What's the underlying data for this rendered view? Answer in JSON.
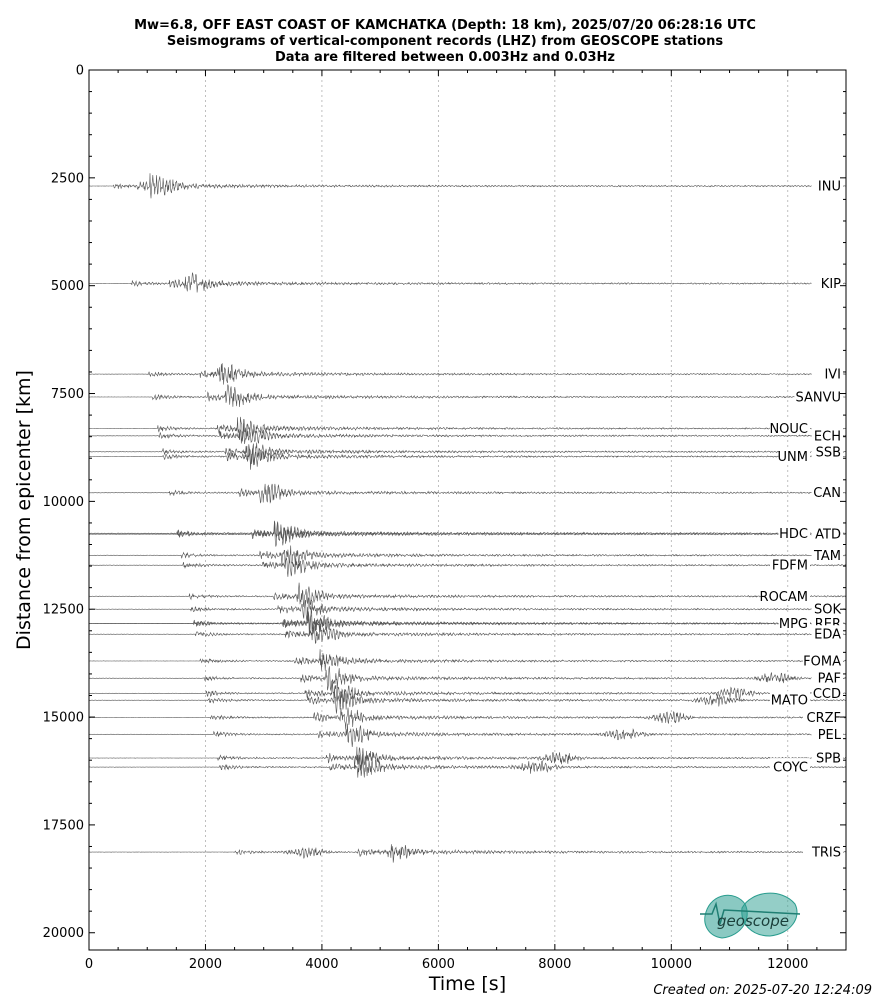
{
  "chart_data": {
    "type": "seismogram-section",
    "title": [
      "Mw=6.8, OFF EAST COAST OF KAMCHATKA (Depth: 18 km), 2025/07/20 06:28:16 UTC",
      "Seismograms of vertical-component records (LHZ) from GEOSCOPE stations",
      "Data are filtered between 0.003Hz and 0.03Hz"
    ],
    "xlabel": "Time [s]",
    "ylabel": "Distance from epicenter [km]",
    "xlim": [
      0,
      13000
    ],
    "ylim": [
      20400,
      0
    ],
    "xticks": [
      0,
      2000,
      4000,
      6000,
      8000,
      10000,
      12000
    ],
    "yticks": [
      0,
      2500,
      5000,
      7500,
      10000,
      12500,
      15000,
      17500,
      20000
    ],
    "grid_x": true,
    "stations": [
      {
        "name": "INU",
        "distance": 2690,
        "label_side": "right"
      },
      {
        "name": "KIP",
        "distance": 4950,
        "label_side": "right"
      },
      {
        "name": "IVI",
        "distance": 7050,
        "label_side": "right"
      },
      {
        "name": "SANVU",
        "distance": 7580,
        "label_side": "right"
      },
      {
        "name": "NOUC",
        "distance": 8310,
        "label_side": "left"
      },
      {
        "name": "ECH",
        "distance": 8480,
        "label_side": "right"
      },
      {
        "name": "SSB",
        "distance": 8850,
        "label_side": "right"
      },
      {
        "name": "UNM",
        "distance": 8960,
        "label_side": "left"
      },
      {
        "name": "CAN",
        "distance": 9800,
        "label_side": "right"
      },
      {
        "name": "HDC",
        "distance": 10740,
        "label_side": "left"
      },
      {
        "name": "ATD",
        "distance": 10760,
        "label_side": "right"
      },
      {
        "name": "TAM",
        "distance": 11250,
        "label_side": "right"
      },
      {
        "name": "FDFM",
        "distance": 11480,
        "label_side": "left"
      },
      {
        "name": "ROCAM",
        "distance": 12200,
        "label_side": "left"
      },
      {
        "name": "SOK",
        "distance": 12500,
        "label_side": "right"
      },
      {
        "name": "MPG",
        "distance": 12830,
        "label_side": "left"
      },
      {
        "name": "RER",
        "distance": 12830,
        "label_side": "right"
      },
      {
        "name": "EDA",
        "distance": 13080,
        "label_side": "right"
      },
      {
        "name": "FOMA",
        "distance": 13700,
        "label_side": "right"
      },
      {
        "name": "PAF",
        "distance": 14100,
        "label_side": "right"
      },
      {
        "name": "CCD",
        "distance": 14450,
        "label_side": "right"
      },
      {
        "name": "MATO",
        "distance": 14610,
        "label_side": "left"
      },
      {
        "name": "CRZF",
        "distance": 15010,
        "label_side": "right"
      },
      {
        "name": "PEL",
        "distance": 15400,
        "label_side": "right"
      },
      {
        "name": "SPB",
        "distance": 15950,
        "label_side": "right"
      },
      {
        "name": "COYC",
        "distance": 16160,
        "label_side": "left"
      },
      {
        "name": "TRIS",
        "distance": 18130,
        "label_side": "right"
      }
    ]
  },
  "logo_text": "geoscope",
  "created": "Created on: 2025-07-20 12:24:09",
  "colors": {
    "trace": "#555555",
    "logo": "#2a9d8f",
    "grid": "#b0b0b0"
  }
}
